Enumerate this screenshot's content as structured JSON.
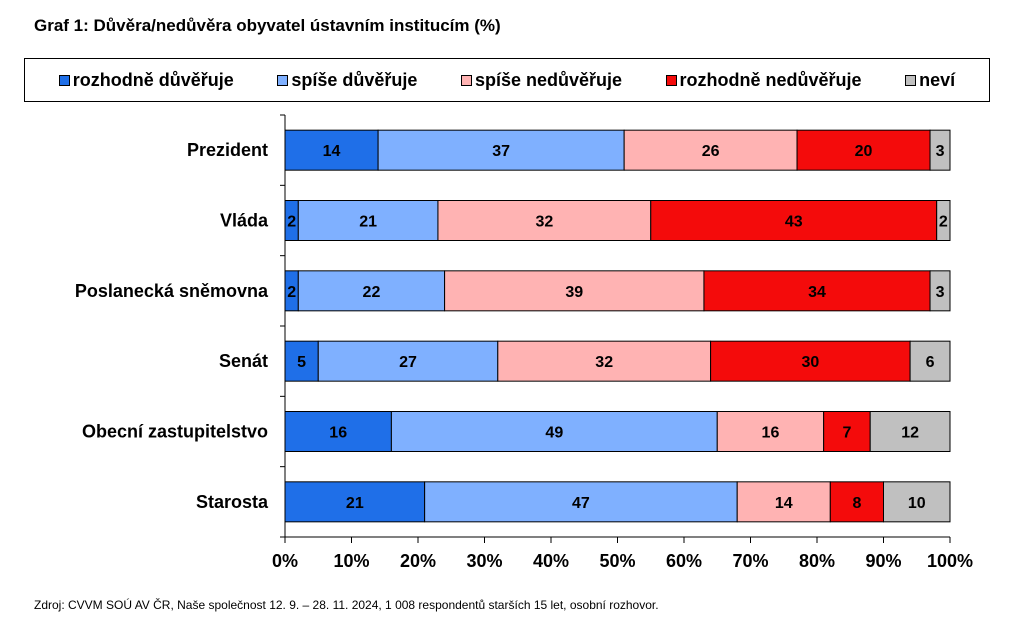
{
  "title": "Graf 1: Důvěra/nedůvěra obyvatel ústavním institucím (%)",
  "source": "Zdroj: CVVM SOÚ AV ČR, Naše společnost 12. 9. – 28. 11. 2024, 1 008 respondentů starších 15 let, osobní rozhovor.",
  "chart_data": {
    "type": "bar",
    "orientation": "horizontal",
    "stacked": "100%",
    "title": "Graf 1: Důvěra/nedůvěra obyvatel ústavním institucím (%)",
    "categories": [
      "Prezident",
      "Vláda",
      "Poslanecká sněmovna",
      "Senát",
      "Obecní zastupitelstvo",
      "Starosta"
    ],
    "series": [
      {
        "name": "rozhodně důvěřuje",
        "color": "#1f6fe8",
        "values": [
          14,
          2,
          2,
          5,
          16,
          21
        ]
      },
      {
        "name": "spíše důvěřuje",
        "color": "#7fb0ff",
        "values": [
          37,
          21,
          22,
          27,
          49,
          47
        ]
      },
      {
        "name": "spíše nedůvěřuje",
        "color": "#ffb3b3",
        "values": [
          26,
          32,
          39,
          32,
          16,
          14
        ]
      },
      {
        "name": "rozhodně nedůvěřuje",
        "color": "#f40b0b",
        "values": [
          20,
          43,
          34,
          30,
          7,
          8
        ]
      },
      {
        "name": "neví",
        "color": "#c0c0c0",
        "values": [
          3,
          2,
          3,
          6,
          12,
          10
        ]
      }
    ],
    "xlim": [
      0,
      100
    ],
    "xticks": [
      "0%",
      "10%",
      "20%",
      "30%",
      "40%",
      "50%",
      "60%",
      "70%",
      "80%",
      "90%",
      "100%"
    ],
    "legend_position": "top",
    "grid": false
  }
}
